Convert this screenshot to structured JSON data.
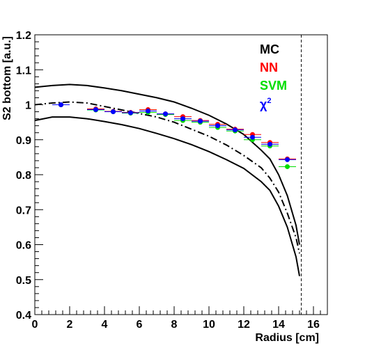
{
  "chart_data": {
    "type": "scatter",
    "xlabel": "Radius [cm]",
    "ylabel": "S2 bottom [a.u.]",
    "xlim": [
      0,
      16.8
    ],
    "ylim": [
      0.4,
      1.2
    ],
    "x_ticks": [
      "0",
      "2",
      "4",
      "6",
      "8",
      "10",
      "12",
      "14",
      "16"
    ],
    "y_ticks": [
      "0.4",
      "0.5",
      "0.6",
      "0.7",
      "0.8",
      "0.9",
      "1",
      "1.1",
      "1.2"
    ],
    "grid": false,
    "legend_placement": "top-right",
    "tpc_edge_x": 15.3,
    "legend": [
      {
        "label": "MC",
        "color": "#000000"
      },
      {
        "label": "NN",
        "color": "#ff0000"
      },
      {
        "label": "SVM",
        "color": "#00dd00"
      },
      {
        "label": "χ",
        "sup": "2",
        "color": "#0000ff"
      }
    ],
    "curves": [
      {
        "name": "upper",
        "style": "solid",
        "x": [
          0,
          1,
          2,
          3,
          4,
          5,
          6,
          7,
          8,
          9,
          10,
          11,
          12,
          13,
          13.5,
          14,
          14.5,
          15.0,
          15.2
        ],
        "y": [
          1.05,
          1.055,
          1.058,
          1.055,
          1.048,
          1.04,
          1.03,
          1.02,
          1.008,
          0.99,
          0.97,
          0.945,
          0.915,
          0.87,
          0.845,
          0.8,
          0.74,
          0.655,
          0.6
        ]
      },
      {
        "name": "dash-dot",
        "style": "dashdot",
        "x": [
          0,
          1,
          2,
          3,
          4,
          5,
          6,
          7,
          8,
          9,
          10,
          11,
          12,
          13,
          13.5,
          14,
          14.5,
          15.0,
          15.2
        ],
        "y": [
          1.0,
          1.005,
          1.008,
          1.005,
          0.995,
          0.985,
          0.975,
          0.965,
          0.95,
          0.93,
          0.91,
          0.885,
          0.855,
          0.82,
          0.79,
          0.75,
          0.69,
          0.62,
          0.575
        ]
      },
      {
        "name": "lower",
        "style": "solid",
        "x": [
          0,
          1,
          2,
          3,
          4,
          5,
          6,
          7,
          8,
          9,
          10,
          11,
          12,
          13,
          13.5,
          14,
          14.5,
          15.0,
          15.2
        ],
        "y": [
          0.955,
          0.965,
          0.965,
          0.96,
          0.952,
          0.943,
          0.932,
          0.918,
          0.903,
          0.886,
          0.866,
          0.843,
          0.818,
          0.78,
          0.755,
          0.71,
          0.65,
          0.565,
          0.51
        ]
      }
    ],
    "series": [
      {
        "name": "NN",
        "color": "#ff0000",
        "dx": 0.5,
        "x": [
          1.5,
          3.5,
          4.5,
          5.5,
          6.5,
          7.5,
          8.5,
          9.5,
          10.5,
          11.5,
          12.5,
          13.5,
          14.5
        ],
        "y": [
          1.0,
          0.988,
          0.981,
          0.978,
          0.986,
          0.974,
          0.966,
          0.955,
          0.944,
          0.93,
          0.915,
          0.892,
          0.845
        ]
      },
      {
        "name": "SVM",
        "color": "#00dd00",
        "dx": 0.5,
        "x": [
          1.5,
          3.5,
          4.5,
          5.5,
          6.5,
          7.5,
          8.5,
          9.5,
          10.5,
          11.5,
          12.5,
          13.5,
          14.5
        ],
        "y": [
          1.0,
          0.985,
          0.98,
          0.976,
          0.978,
          0.972,
          0.955,
          0.95,
          0.935,
          0.925,
          0.9,
          0.882,
          0.823
        ]
      },
      {
        "name": "χ2",
        "color": "#0000ff",
        "dx": 0.5,
        "x": [
          1.5,
          3.5,
          4.5,
          5.5,
          6.5,
          7.5,
          8.5,
          9.5,
          10.5,
          11.5,
          12.5,
          13.5,
          14.5
        ],
        "y": [
          1.0,
          0.986,
          0.98,
          0.977,
          0.982,
          0.974,
          0.96,
          0.953,
          0.94,
          0.928,
          0.907,
          0.887,
          0.843
        ]
      }
    ]
  }
}
